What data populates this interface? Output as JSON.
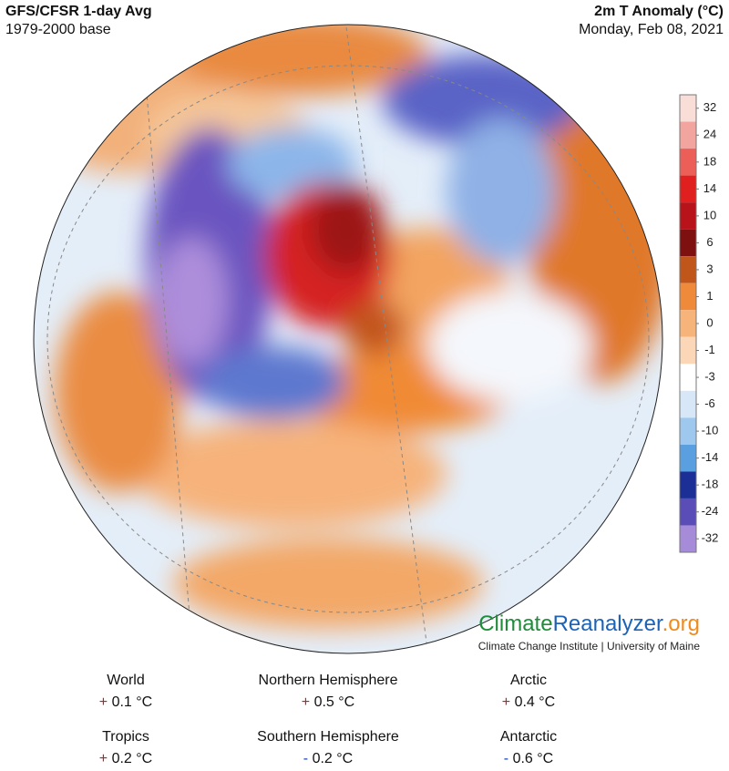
{
  "header": {
    "title": "GFS/CFSR 1-day Avg",
    "subtitle": "1979-2000 base",
    "variable": "2m T Anomaly (°C)",
    "date": "Monday, Feb 08, 2021"
  },
  "legend": {
    "ticks": [
      32,
      24,
      18,
      14,
      10,
      6,
      3,
      1,
      0,
      -1,
      -3,
      -6,
      -10,
      -14,
      -18,
      -24,
      -32
    ],
    "colors": [
      "#f9ded8",
      "#f2a59e",
      "#ec5f58",
      "#e01f1f",
      "#b8131a",
      "#7e1010",
      "#c0561a",
      "#ee8a3a",
      "#f7b47a",
      "#fbd7b7",
      "#ffffff",
      "#d7e7f7",
      "#9fc8ef",
      "#5a9fe0",
      "#1c2f96",
      "#5b4db8",
      "#a58bd8"
    ]
  },
  "logo": {
    "part1": "Climate",
    "part2": "Reanalyzer",
    "part3": ".org",
    "subtitle": "Climate Change Institute | University of Maine"
  },
  "stats": [
    {
      "name": "World",
      "sign": "+",
      "value": 0.1,
      "unit": "°C"
    },
    {
      "name": "Northern Hemisphere",
      "sign": "+",
      "value": 0.5,
      "unit": "°C"
    },
    {
      "name": "Arctic",
      "sign": "+",
      "value": 0.4,
      "unit": "°C"
    },
    {
      "name": "Tropics",
      "sign": "+",
      "value": 0.2,
      "unit": "°C"
    },
    {
      "name": "Southern Hemisphere",
      "sign": "-",
      "value": 0.2,
      "unit": "°C"
    },
    {
      "name": "Antarctic",
      "sign": "-",
      "value": 0.6,
      "unit": "°C"
    }
  ]
}
